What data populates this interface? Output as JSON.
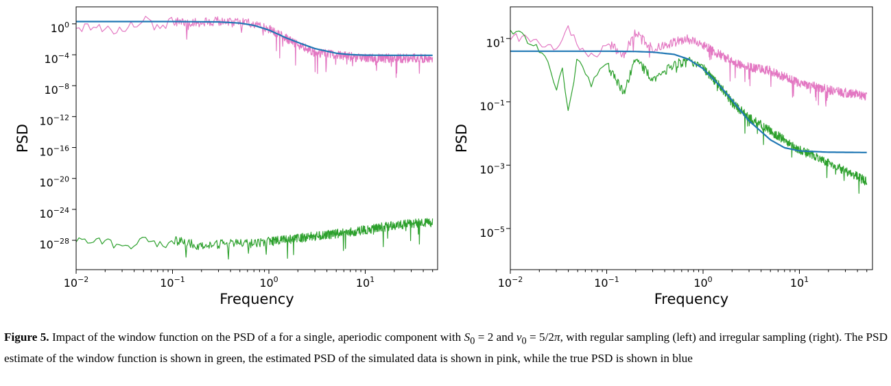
{
  "chart_data": [
    {
      "type": "line",
      "panel": "left",
      "title": "",
      "xlabel": "Frequency",
      "ylabel": "PSD",
      "xscale": "log",
      "yscale": "log",
      "xlim": [
        0.01,
        50
      ],
      "ylim_log10": [
        -31.8,
        2.2
      ],
      "xticks": [
        {
          "base": "10",
          "exp": "−2",
          "value": 0.01
        },
        {
          "base": "10",
          "exp": "−1",
          "value": 0.1
        },
        {
          "base": "10",
          "exp": "0",
          "value": 1
        },
        {
          "base": "10",
          "exp": "1",
          "value": 10
        }
      ],
      "yticks": [
        {
          "base": "10",
          "exp": "0",
          "log10": 0
        },
        {
          "base": "10",
          "exp": "−4",
          "log10": -4
        },
        {
          "base": "10",
          "exp": "−8",
          "log10": -8
        },
        {
          "base": "10",
          "exp": "−12",
          "log10": -12
        },
        {
          "base": "10",
          "exp": "−16",
          "log10": -16
        },
        {
          "base": "10",
          "exp": "−20",
          "log10": -20
        },
        {
          "base": "10",
          "exp": "−24",
          "log10": -24
        },
        {
          "base": "10",
          "exp": "−28",
          "log10": -28
        }
      ],
      "grid": false,
      "series": [
        {
          "color": "#e377c2",
          "x": [
            0.01,
            0.02,
            0.03,
            0.05,
            0.07,
            0.1,
            0.2,
            0.3,
            0.5,
            0.7,
            1,
            1.5,
            2,
            3,
            5,
            7,
            10,
            20,
            50
          ],
          "log10_y": [
            -0.3,
            -0.6,
            -0.8,
            0.7,
            -0.5,
            0.4,
            0.2,
            0.4,
            0.3,
            0.1,
            -0.6,
            -1.8,
            -2.6,
            -3.6,
            -4,
            -4.2,
            -4.4,
            -4.4,
            -4.4
          ]
        },
        {
          "color": "#2ca02c",
          "x": [
            0.01,
            0.02,
            0.03,
            0.05,
            0.07,
            0.1,
            0.2,
            0.3,
            0.5,
            0.7,
            1,
            2,
            3,
            5,
            10,
            20,
            50
          ],
          "log10_y": [
            -28.0,
            -28.0,
            -29.1,
            -27.8,
            -28.8,
            -27.9,
            -28.7,
            -28.5,
            -28.2,
            -28.4,
            -28.1,
            -27.7,
            -27.4,
            -27.1,
            -26.6,
            -26.0,
            -25.6
          ]
        },
        {
          "color": "#1f77b4",
          "x": [
            0.01,
            0.1,
            0.3,
            0.5,
            0.7,
            1,
            1.5,
            2,
            3,
            5,
            7,
            10,
            20,
            50
          ],
          "log10_y": [
            0.3,
            0.3,
            0.25,
            0.1,
            -0.2,
            -0.8,
            -1.8,
            -2.4,
            -3.2,
            -3.8,
            -3.98,
            -4.05,
            -4.07,
            -4.07
          ]
        }
      ]
    },
    {
      "type": "line",
      "panel": "right",
      "title": "",
      "xlabel": "Frequency",
      "ylabel": "PSD",
      "xscale": "log",
      "yscale": "log",
      "xlim": [
        0.01,
        50
      ],
      "ylim_log10": [
        -6.3,
        2.0
      ],
      "xticks": [
        {
          "base": "10",
          "exp": "−2",
          "value": 0.01
        },
        {
          "base": "10",
          "exp": "−1",
          "value": 0.1
        },
        {
          "base": "10",
          "exp": "0",
          "value": 1
        },
        {
          "base": "10",
          "exp": "1",
          "value": 10
        }
      ],
      "yticks": [
        {
          "base": "10",
          "exp": "1",
          "log10": 1
        },
        {
          "base": "10",
          "exp": "−1",
          "log10": -1
        },
        {
          "base": "10",
          "exp": "−3",
          "log10": -3
        },
        {
          "base": "10",
          "exp": "−5",
          "log10": -5
        }
      ],
      "grid": false,
      "series": [
        {
          "color": "#e377c2",
          "x": [
            0.01,
            0.015,
            0.02,
            0.03,
            0.04,
            0.05,
            0.07,
            0.1,
            0.15,
            0.2,
            0.3,
            0.5,
            0.7,
            1,
            1.5,
            2,
            3,
            5,
            7,
            10,
            20,
            50
          ],
          "log10_y": [
            1.0,
            1.1,
            0.9,
            0.6,
            1.4,
            0.8,
            0.4,
            0.9,
            0.5,
            1.2,
            0.7,
            0.9,
            1.0,
            0.8,
            0.5,
            0.3,
            0.1,
            0.0,
            -0.2,
            -0.4,
            -0.6,
            -0.8
          ]
        },
        {
          "color": "#2ca02c",
          "x": [
            0.01,
            0.015,
            0.02,
            0.025,
            0.03,
            0.035,
            0.04,
            0.05,
            0.07,
            0.1,
            0.15,
            0.2,
            0.3,
            0.5,
            0.7,
            1,
            1.5,
            2,
            3,
            5,
            7,
            10,
            20,
            50
          ],
          "log10_y": [
            1.3,
            1.0,
            0.7,
            0.2,
            -0.5,
            0.0,
            -1.3,
            0.5,
            -0.4,
            0.2,
            -0.7,
            0.4,
            -0.3,
            0.2,
            0.3,
            0.1,
            -0.5,
            -1.0,
            -1.5,
            -1.9,
            -2.2,
            -2.5,
            -2.9,
            -3.5
          ]
        },
        {
          "color": "#1f77b4",
          "x": [
            0.01,
            0.1,
            0.2,
            0.3,
            0.5,
            0.7,
            1,
            1.5,
            2,
            3,
            5,
            7,
            10,
            20,
            50
          ],
          "log10_y": [
            0.6,
            0.6,
            0.59,
            0.57,
            0.5,
            0.35,
            0.05,
            -0.5,
            -0.95,
            -1.6,
            -2.2,
            -2.45,
            -2.55,
            -2.59,
            -2.6
          ]
        }
      ]
    }
  ],
  "caption": {
    "label": "Figure 5.",
    "part1": " Impact of the window function on the PSD of a for a single, aperiodic component with ",
    "s0_symbol": "S",
    "s0_sub": "0",
    "s0_eq": " = 2 and ",
    "nu0_symbol": "ν",
    "nu0_sub": "0",
    "nu0_eq": " = 5/2",
    "pi_symbol": "π",
    "part2": ", with regular sampling (left) and irregular sampling (right). The PSD estimate of the window function is shown in green, the estimated PSD of the simulated data is shown in pink, while the true PSD is shown in blue"
  }
}
